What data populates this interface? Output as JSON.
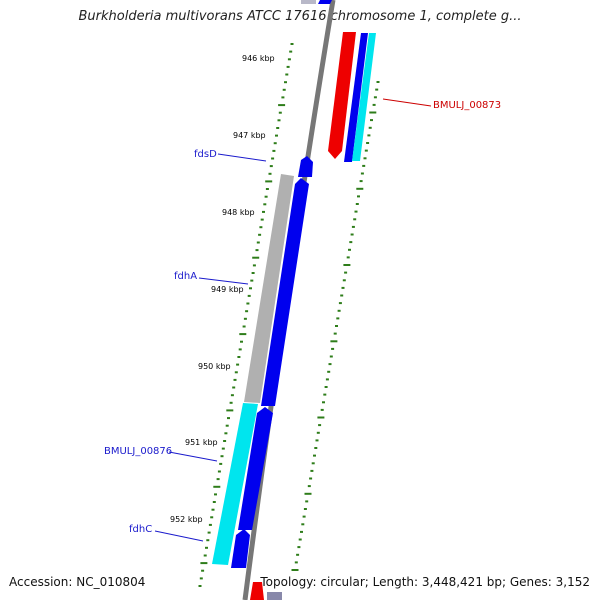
{
  "title": "Burkholderia multivorans ATCC 17616 chromosome 1, complete g...",
  "footer": {
    "accession": "Accession: NC_010804",
    "summary": "Topology: circular; Length: 3,448,421 bp; Genes: 3,152"
  },
  "colors": {
    "backbone": "#777777",
    "tick": "#2e7d1a",
    "label_blue": "#1a1acc",
    "label_red": "#cc0000",
    "cds_blue": "#0000ee",
    "cds_cyan": "#00e5ee",
    "cds_red": "#ee0000",
    "cds_gray": "#b0b0b0"
  },
  "ticks": [
    "946 kbp",
    "947 kbp",
    "948 kbp",
    "949 kbp",
    "950 kbp",
    "951 kbp",
    "952 kbp"
  ],
  "genes": [
    {
      "label": "fdsD",
      "color": "blue"
    },
    {
      "label": "fdhA",
      "color": "blue"
    },
    {
      "label": "BMULJ_00876",
      "color": "blue"
    },
    {
      "label": "fdhC",
      "color": "blue"
    },
    {
      "label": "BMULJ_00873",
      "color": "red"
    }
  ]
}
